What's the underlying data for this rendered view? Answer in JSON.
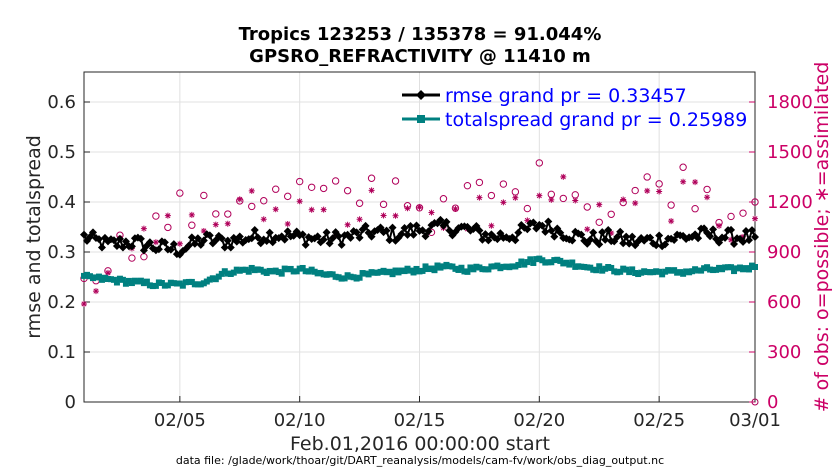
{
  "chart_data": {
    "type": "line",
    "title": "Tropics 123253 / 135378 = 91.044%",
    "subtitle": "GPSRO_REFRACTIVITY @ 11410 m",
    "xlabel": "Feb.01,2016 00:00:00 start",
    "ylabel": "rmse and totalspread",
    "y2label": "# of obs: o=possible; ∗=assimilated",
    "footer": "data file: /glade/work/thoar/git/DART_reanalysis/models/cam-fv/work/obs_diag_output.nc",
    "x_range_days": [
      1,
      29
    ],
    "ylim": [
      0,
      0.66
    ],
    "y2lim": [
      0,
      1980
    ],
    "yticks": [
      "0",
      "0.1",
      "0.2",
      "0.3",
      "0.4",
      "0.5",
      "0.6"
    ],
    "y2ticks": [
      "0",
      "300",
      "600",
      "900",
      "1200",
      "1500",
      "1800"
    ],
    "xticks": [
      {
        "day": 5,
        "label": "02/05"
      },
      {
        "day": 10,
        "label": "02/10"
      },
      {
        "day": 15,
        "label": "02/15"
      },
      {
        "day": 20,
        "label": "02/20"
      },
      {
        "day": 25,
        "label": "02/25"
      },
      {
        "day": 29,
        "label": "03/01"
      }
    ],
    "legend": {
      "rmse": "rmse grand pr = 0.33457",
      "spread": "totalspread grand pr = 0.25989"
    },
    "grid": true,
    "rmse_daily": [
      0.33,
      0.315,
      0.32,
      0.31,
      0.305,
      0.325,
      0.32,
      0.33,
      0.335,
      0.33,
      0.325,
      0.33,
      0.34,
      0.335,
      0.345,
      0.35,
      0.345,
      0.33,
      0.335,
      0.355,
      0.34,
      0.325,
      0.33,
      0.32,
      0.325,
      0.33,
      0.335,
      0.33,
      0.33
    ],
    "spread_daily": [
      0.25,
      0.245,
      0.24,
      0.235,
      0.235,
      0.24,
      0.26,
      0.265,
      0.26,
      0.265,
      0.255,
      0.25,
      0.255,
      0.26,
      0.265,
      0.27,
      0.265,
      0.27,
      0.275,
      0.285,
      0.28,
      0.27,
      0.265,
      0.26,
      0.26,
      0.26,
      0.265,
      0.265,
      0.27
    ],
    "possible_daily": [
      800,
      880,
      950,
      1050,
      1150,
      1120,
      1200,
      1250,
      1220,
      1260,
      1230,
      1200,
      1280,
      1300,
      1180,
      1100,
      1220,
      1250,
      1240,
      1320,
      1350,
      1200,
      1160,
      1250,
      1300,
      1320,
      1250,
      1150,
      1200
    ],
    "assimilated_daily": [
      700,
      820,
      900,
      980,
      1060,
      1040,
      1120,
      1160,
      1130,
      1170,
      1140,
      1110,
      1180,
      1200,
      1090,
      1010,
      1130,
      1160,
      1150,
      1220,
      1250,
      1110,
      1070,
      1150,
      1200,
      1220,
      1160,
      1060,
      1100
    ],
    "samples_per_day": 8
  }
}
